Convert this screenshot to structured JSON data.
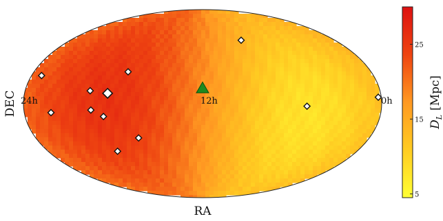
{
  "chart_data": {
    "type": "heatmap",
    "projection": "mollweide",
    "title": "",
    "xlabel": "RA",
    "ylabel": "DEC",
    "ra_tick_labels": [
      {
        "text": "24h",
        "ra_hours": 24
      },
      {
        "text": "12h",
        "ra_hours": 12
      },
      {
        "text": "0h",
        "ra_hours": 0
      }
    ],
    "colorbar": {
      "label": "D_L [Mpc]",
      "label_main": "D",
      "label_sub": "L",
      "label_unit": "[Mpc]",
      "range": [
        4.5,
        30
      ],
      "ticks": [
        {
          "text": "5",
          "value": 5
        },
        {
          "text": "15",
          "value": 15
        },
        {
          "text": "25",
          "value": 25
        }
      ],
      "colors": [
        "#ffff33",
        "#ffcc22",
        "#ff9922",
        "#ee4411",
        "#dd1111"
      ]
    },
    "field": {
      "description_free": false,
      "ra_hours_min": 0,
      "ra_hours_max": 24,
      "hot_region_center": {
        "ra_hours": 18.5,
        "dec_deg": 5,
        "value": 26
      },
      "cool_region_center": {
        "ra_hours": 5,
        "dec_deg": -10,
        "value": 8
      }
    },
    "markers": [
      {
        "type": "diamond",
        "ra_hours": 8.5,
        "dec_deg": 52,
        "color": "#ffffff",
        "size": "small"
      },
      {
        "type": "diamond",
        "ra_hours": 23.3,
        "dec_deg": 22,
        "color": "#ffffff",
        "size": "small"
      },
      {
        "type": "diamond",
        "ra_hours": 17.3,
        "dec_deg": 25,
        "color": "#ffffff",
        "size": "small"
      },
      {
        "type": "diamond",
        "ra_hours": 19.6,
        "dec_deg": 10,
        "color": "#ffffff",
        "size": "small"
      },
      {
        "type": "diamond",
        "ra_hours": 18.4,
        "dec_deg": 8,
        "color": "#ffffff",
        "size": "large"
      },
      {
        "type": "diamond",
        "ra_hours": 0.2,
        "dec_deg": 5,
        "color": "#ffffff",
        "size": "small"
      },
      {
        "type": "diamond",
        "ra_hours": 5,
        "dec_deg": -2,
        "color": "#ffffff",
        "size": "small"
      },
      {
        "type": "diamond",
        "ra_hours": 22.2,
        "dec_deg": -7,
        "color": "#ffffff",
        "size": "small"
      },
      {
        "type": "diamond",
        "ra_hours": 19.5,
        "dec_deg": -5,
        "color": "#ffffff",
        "size": "small"
      },
      {
        "type": "diamond",
        "ra_hours": 18.7,
        "dec_deg": -10,
        "color": "#ffffff",
        "size": "small"
      },
      {
        "type": "diamond",
        "ra_hours": 16.6,
        "dec_deg": -27,
        "color": "#ffffff",
        "size": "small"
      },
      {
        "type": "diamond",
        "ra_hours": 18.6,
        "dec_deg": -38,
        "color": "#ffffff",
        "size": "small"
      },
      {
        "type": "triangle",
        "ra_hours": 12,
        "dec_deg": 12,
        "color": "#1e8a1e",
        "size": "large"
      }
    ]
  }
}
